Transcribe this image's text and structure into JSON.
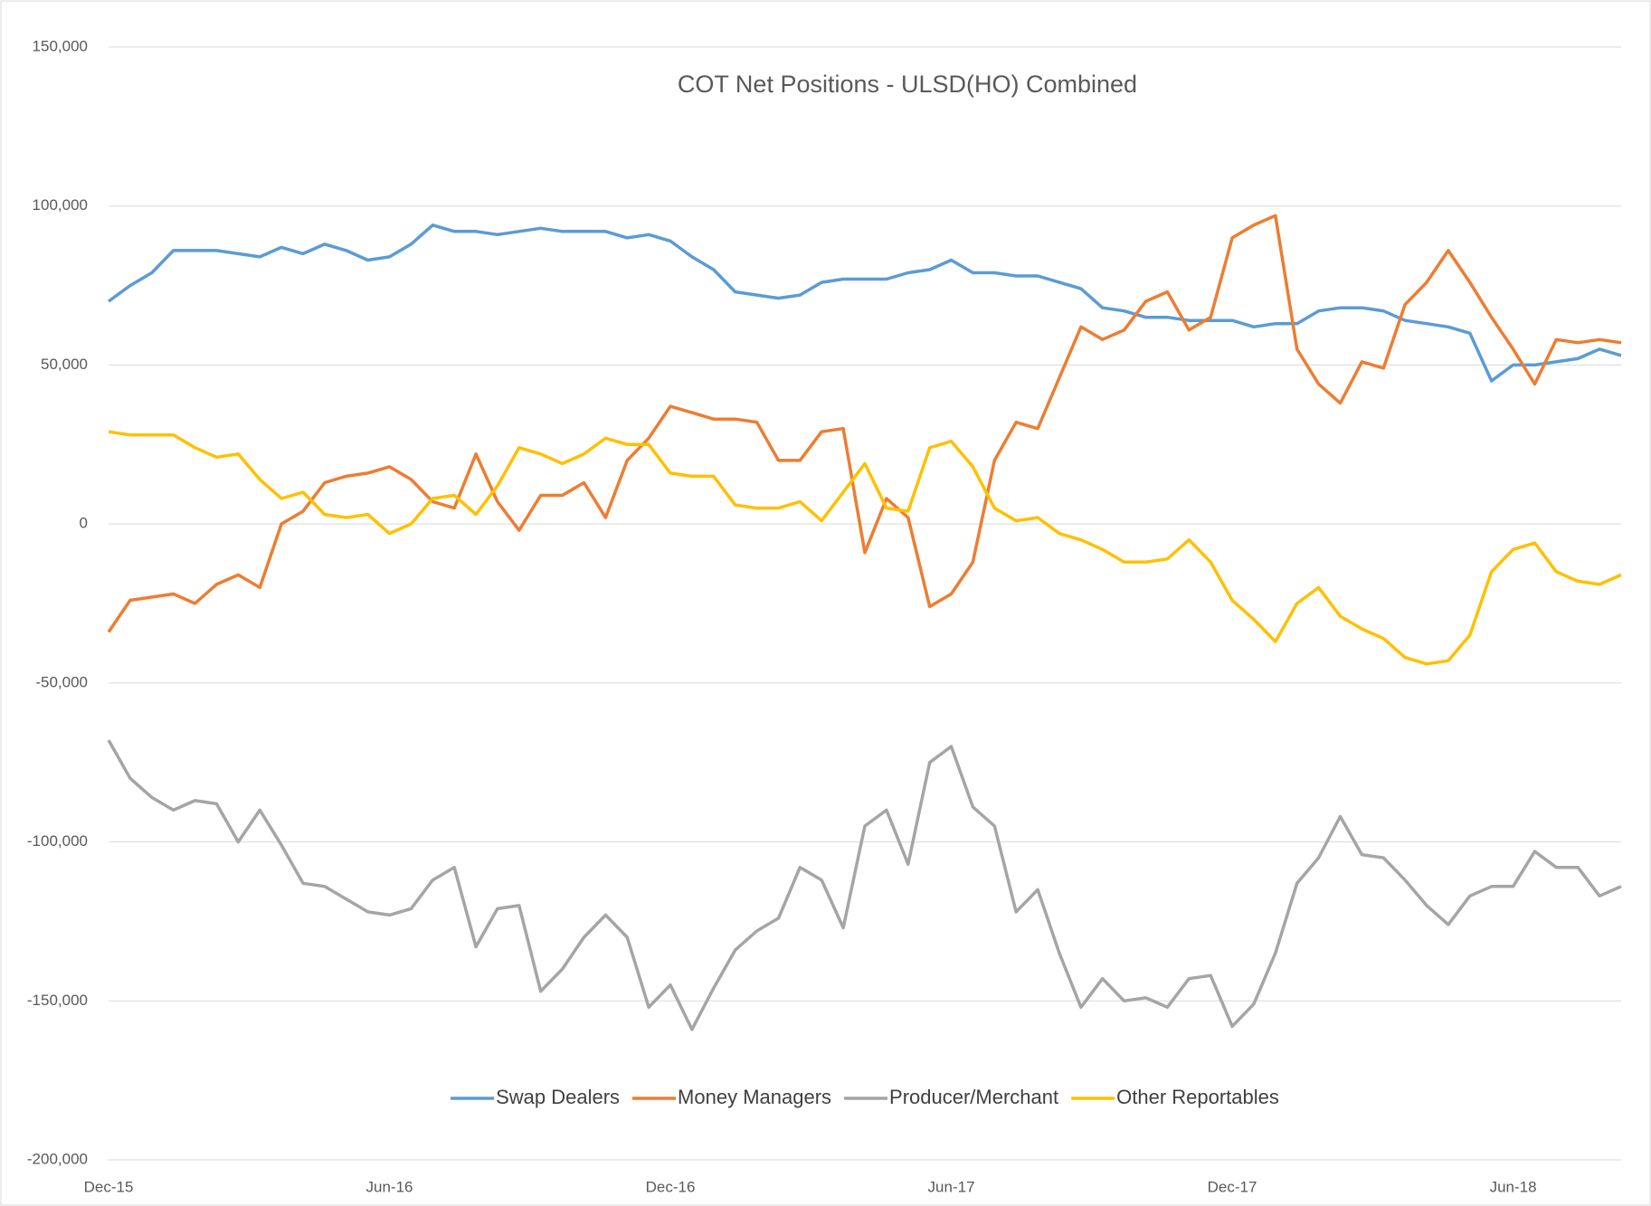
{
  "chart_data": {
    "type": "line",
    "title": "COT Net Positions - ULSD(HO) Combined",
    "categories": [
      "Dec-15",
      null,
      null,
      null,
      null,
      null,
      null,
      null,
      null,
      null,
      null,
      null,
      null,
      "Jun-16",
      null,
      null,
      null,
      null,
      null,
      null,
      null,
      null,
      null,
      null,
      null,
      null,
      "Dec-16",
      null,
      null,
      null,
      null,
      null,
      null,
      null,
      null,
      null,
      null,
      null,
      null,
      "Jun-17",
      null,
      null,
      null,
      null,
      null,
      null,
      null,
      null,
      null,
      null,
      null,
      null,
      "Dec-17",
      null,
      null,
      null,
      null,
      null,
      null,
      null,
      null,
      null,
      null,
      null,
      null,
      "Jun-18",
      null,
      null,
      null,
      null,
      null
    ],
    "series": [
      {
        "name": "Swap Dealers",
        "color": "#5b9bd5",
        "values": [
          70000,
          75000,
          79000,
          86000,
          86000,
          86000,
          85000,
          84000,
          87000,
          85000,
          88000,
          86000,
          83000,
          84000,
          88000,
          94000,
          92000,
          92000,
          91000,
          92000,
          93000,
          92000,
          92000,
          92000,
          90000,
          91000,
          89000,
          84000,
          80000,
          73000,
          72000,
          71000,
          72000,
          76000,
          77000,
          77000,
          77000,
          79000,
          80000,
          83000,
          79000,
          79000,
          78000,
          78000,
          76000,
          74000,
          68000,
          67000,
          65000,
          65000,
          64000,
          64000,
          64000,
          62000,
          63000,
          63000,
          67000,
          68000,
          68000,
          67000,
          64000,
          63000,
          62000,
          60000,
          45000,
          50000,
          50000,
          51000,
          52000,
          55000,
          53000
        ]
      },
      {
        "name": "Money Managers",
        "color": "#ed7d31",
        "values": [
          -34000,
          -24000,
          -23000,
          -22000,
          -25000,
          -19000,
          -16000,
          -20000,
          0,
          4000,
          13000,
          15000,
          16000,
          18000,
          14000,
          7000,
          5000,
          22000,
          7000,
          -2000,
          9000,
          9000,
          13000,
          2000,
          20000,
          27000,
          37000,
          35000,
          33000,
          33000,
          32000,
          20000,
          20000,
          29000,
          30000,
          -9000,
          8000,
          2000,
          -26000,
          -22000,
          -12000,
          20000,
          32000,
          30000,
          46000,
          62000,
          58000,
          61000,
          70000,
          73000,
          61000,
          65000,
          90000,
          94000,
          97000,
          55000,
          44000,
          38000,
          51000,
          49000,
          69000,
          76000,
          86000,
          76000,
          65000,
          55000,
          44000,
          58000,
          57000,
          58000,
          57000
        ]
      },
      {
        "name": "Producer/Merchant",
        "color": "#a5a5a5",
        "values": [
          -68000,
          -80000,
          -86000,
          -90000,
          -87000,
          -88000,
          -100000,
          -90000,
          -101000,
          -113000,
          -114000,
          -118000,
          -122000,
          -123000,
          -121000,
          -112000,
          -108000,
          -133000,
          -121000,
          -120000,
          -147000,
          -140000,
          -130000,
          -123000,
          -130000,
          -152000,
          -145000,
          -159000,
          -146000,
          -134000,
          -128000,
          -124000,
          -108000,
          -112000,
          -127000,
          -95000,
          -90000,
          -107000,
          -75000,
          -70000,
          -89000,
          -95000,
          -122000,
          -115000,
          -135000,
          -152000,
          -143000,
          -150000,
          -149000,
          -152000,
          -143000,
          -142000,
          -158000,
          -151000,
          -135000,
          -113000,
          -105000,
          -92000,
          -104000,
          -105000,
          -112000,
          -120000,
          -126000,
          -117000,
          -114000,
          -114000,
          -103000,
          -108000,
          -108000,
          -117000,
          -114000
        ]
      },
      {
        "name": "Other Reportables",
        "color": "#ffc000",
        "values": [
          29000,
          28000,
          28000,
          28000,
          24000,
          21000,
          22000,
          14000,
          8000,
          10000,
          3000,
          2000,
          3000,
          -3000,
          0,
          8000,
          9000,
          3000,
          12000,
          24000,
          22000,
          19000,
          22000,
          27000,
          25000,
          25000,
          16000,
          15000,
          15000,
          6000,
          5000,
          5000,
          7000,
          1000,
          10000,
          19000,
          5000,
          4000,
          24000,
          26000,
          18000,
          5000,
          1000,
          2000,
          -3000,
          -5000,
          -8000,
          -12000,
          -12000,
          -11000,
          -5000,
          -12000,
          -24000,
          -30000,
          -37000,
          -25000,
          -20000,
          -29000,
          -33000,
          -36000,
          -42000,
          -44000,
          -43000,
          -35000,
          -15000,
          -8000,
          -6000,
          -15000,
          -18000,
          -19000,
          -16000
        ]
      }
    ],
    "ylim": [
      -200000,
      150000
    ],
    "yticks": [
      {
        "value": -200000,
        "label": "-200,000"
      },
      {
        "value": -150000,
        "label": "-150,000"
      },
      {
        "value": -100000,
        "label": "-100,000"
      },
      {
        "value": -50000,
        "label": "-50,000"
      },
      0,
      {
        "value": 50000,
        "label": "50,000"
      },
      {
        "value": 100000,
        "label": "100,000"
      },
      {
        "value": 150000,
        "label": "150,000"
      }
    ],
    "grid": true,
    "legend": "bottom"
  }
}
